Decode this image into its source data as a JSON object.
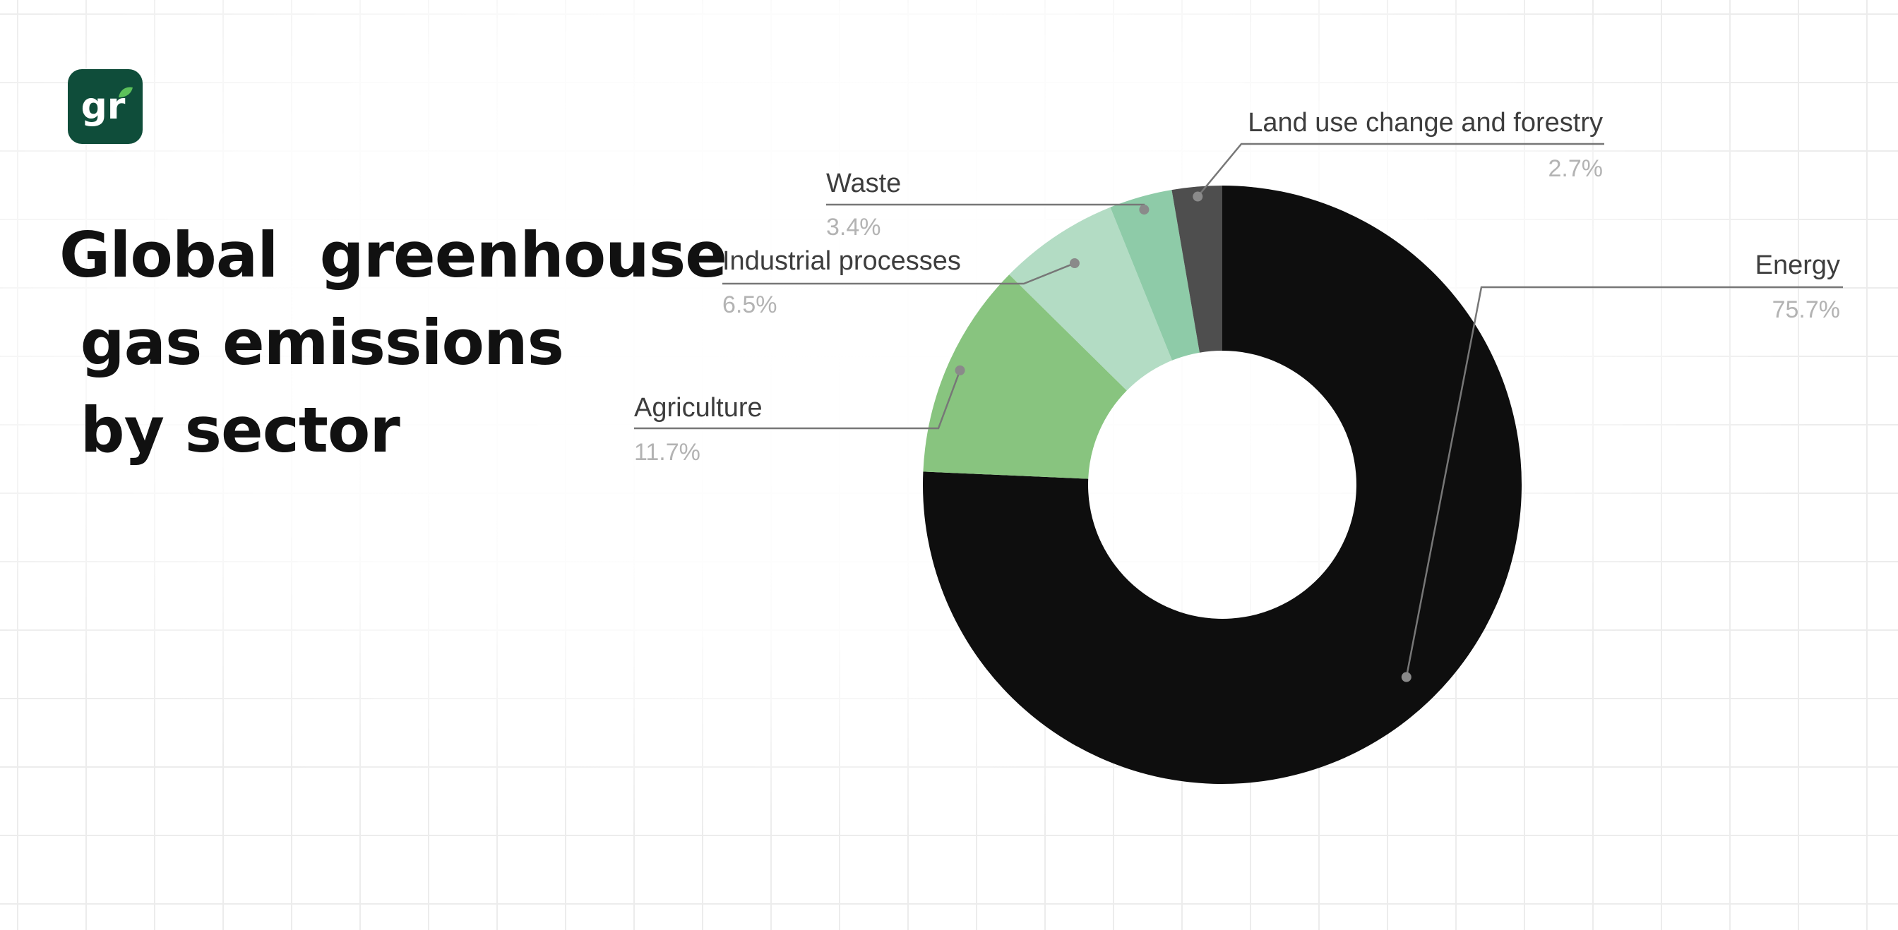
{
  "title_lines": [
    "Global  greenhouse",
    " gas emissions",
    " by sector"
  ],
  "logo": {
    "text": "gr",
    "bg_color": "#0f4d3a",
    "leaf_color": "#5cc15a"
  },
  "chart_data": {
    "type": "pie",
    "donut": true,
    "legend": "callout labels",
    "slices": [
      {
        "label": "Energy",
        "value": 75.7,
        "display": "75.7%",
        "color": "#0e0e0e"
      },
      {
        "label": "Agriculture",
        "value": 11.7,
        "display": "11.7%",
        "color": "#88c47f"
      },
      {
        "label": "Industrial processes",
        "value": 6.5,
        "display": "6.5%",
        "color": "#b3dcc4"
      },
      {
        "label": "Waste",
        "value": 3.4,
        "display": "3.4%",
        "color": "#8ecba8"
      },
      {
        "label": "Land use change and forestry",
        "value": 2.7,
        "display": "2.7%",
        "color": "#4e4e4e"
      }
    ]
  }
}
